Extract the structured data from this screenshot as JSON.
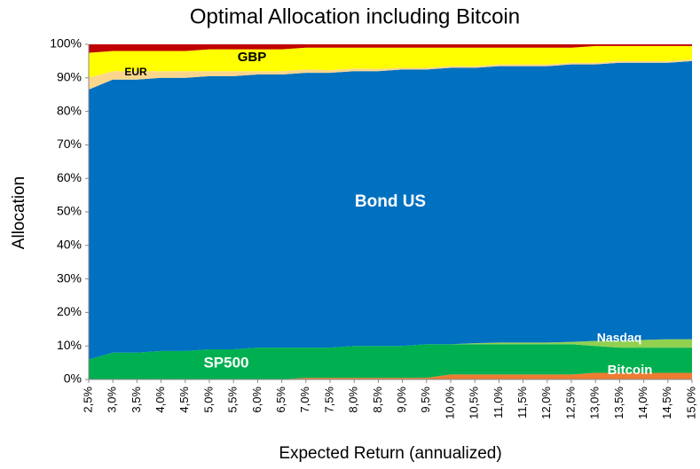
{
  "chart_data": {
    "type": "stacked_area",
    "title": "Optimal Allocation including Bitcoin",
    "x_label": "Expected Return (annualized)",
    "y_label": "Allocation",
    "categories": [
      "2,5%",
      "3,0%",
      "3,5%",
      "4,0%",
      "4,5%",
      "5,0%",
      "5,5%",
      "6,0%",
      "6,5%",
      "7,0%",
      "7,5%",
      "8,0%",
      "8,5%",
      "9,0%",
      "9,5%",
      "10,0%",
      "10,5%",
      "11,0%",
      "11,5%",
      "12,0%",
      "12,5%",
      "13,0%",
      "13,5%",
      "14,0%",
      "14,5%",
      "15,0%"
    ],
    "ylim": [
      0,
      100
    ],
    "yticks": [
      {
        "value": 0,
        "label": "0%"
      },
      {
        "value": 10,
        "label": "10%"
      },
      {
        "value": 20,
        "label": "20%"
      },
      {
        "value": 30,
        "label": "30%"
      },
      {
        "value": 40,
        "label": "40%"
      },
      {
        "value": 50,
        "label": "50%"
      },
      {
        "value": 60,
        "label": "60%"
      },
      {
        "value": 70,
        "label": "70%"
      },
      {
        "value": 80,
        "label": "80%"
      },
      {
        "value": 90,
        "label": "90%"
      },
      {
        "value": 100,
        "label": "100%"
      }
    ],
    "series": [
      {
        "name": "Bitcoin",
        "color": "#ed7d31",
        "values": [
          0,
          0,
          0,
          0,
          0,
          0,
          0,
          0,
          0,
          0.5,
          0.5,
          0.5,
          0.5,
          0.5,
          0.5,
          1.5,
          1.5,
          1.5,
          1.5,
          1.5,
          1.5,
          2,
          2,
          2,
          2,
          2
        ]
      },
      {
        "name": "SP500",
        "color": "#00b050",
        "values": [
          6,
          8,
          8,
          8.5,
          8.5,
          9,
          9,
          9.5,
          9.5,
          9,
          9,
          9.5,
          9.5,
          9.5,
          10,
          9,
          9,
          9,
          9,
          9,
          9,
          8,
          7.5,
          7.5,
          7.5,
          7.5
        ]
      },
      {
        "name": "Nasdaq",
        "color": "#92d050",
        "values": [
          0,
          0,
          0,
          0,
          0,
          0,
          0,
          0,
          0,
          0,
          0,
          0,
          0,
          0,
          0,
          0,
          0.3,
          0.5,
          0.5,
          0.5,
          0.7,
          1.5,
          2,
          2.3,
          2.5,
          2.5
        ]
      },
      {
        "name": "Bond US",
        "color": "#0070c0",
        "values": [
          80.5,
          81.5,
          81.5,
          81.5,
          81.5,
          81.5,
          81.5,
          81.5,
          81.5,
          82,
          82,
          82,
          82,
          82.5,
          82,
          82.5,
          82.2,
          82.5,
          82.5,
          82.5,
          82.8,
          82.5,
          83,
          82.7,
          82.5,
          83
        ]
      },
      {
        "name": "EUR",
        "color": "#fad68c",
        "values": [
          3.5,
          2.5,
          2.5,
          2,
          2,
          1.5,
          1.5,
          1,
          1,
          1,
          0.8,
          0.8,
          0.7,
          0.5,
          0.5,
          0.5,
          0.5,
          0.5,
          0.5,
          0.5,
          0.5,
          0.5,
          0.5,
          0.5,
          0.5,
          0.5
        ]
      },
      {
        "name": "GBP",
        "color": "#ffff00",
        "values": [
          7.5,
          6,
          6,
          6,
          6,
          6.5,
          6.5,
          6.5,
          6.5,
          6.5,
          6.7,
          6.2,
          6.3,
          6,
          6,
          5.5,
          5.5,
          5,
          5,
          5,
          4.5,
          5,
          4.5,
          4.5,
          4.5,
          4
        ]
      },
      {
        "color": "#c00000",
        "values": [
          2.5,
          2,
          2,
          2,
          2,
          1.5,
          1.5,
          1.5,
          1.5,
          1,
          1,
          1,
          1,
          1,
          1,
          1,
          1,
          1,
          1,
          1,
          1,
          0.5,
          0.5,
          0.5,
          0.5,
          0.5
        ]
      }
    ]
  }
}
